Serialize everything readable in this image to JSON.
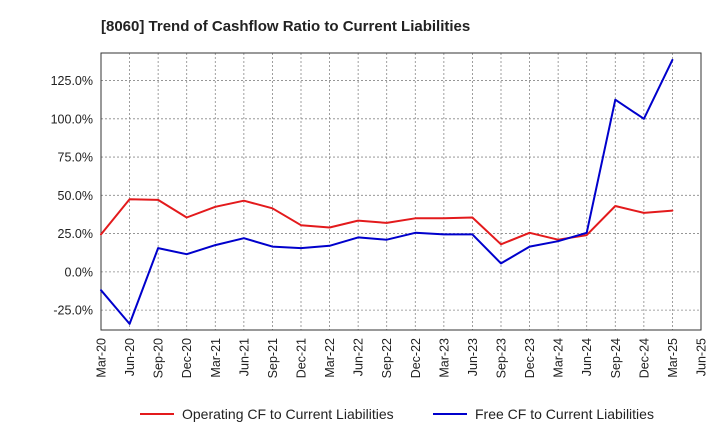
{
  "chart_data": {
    "type": "line",
    "title": "[8060]  Trend of Cashflow Ratio to Current Liabilities",
    "xlabel": "",
    "ylabel": "",
    "categories": [
      "Mar-20",
      "Jun-20",
      "Sep-20",
      "Dec-20",
      "Mar-21",
      "Jun-21",
      "Sep-21",
      "Dec-21",
      "Mar-22",
      "Jun-22",
      "Sep-22",
      "Dec-22",
      "Mar-23",
      "Jun-23",
      "Sep-23",
      "Dec-23",
      "Mar-24",
      "Jun-24",
      "Sep-24",
      "Dec-24",
      "Mar-25",
      "Jun-25"
    ],
    "y_ticks": [
      -25,
      0,
      25,
      50,
      75,
      100,
      125
    ],
    "y_tick_labels": [
      "-25.0%",
      "0.0%",
      "25.0%",
      "50.0%",
      "75.0%",
      "100.0%",
      "125.0%"
    ],
    "ylim": [
      -38,
      143
    ],
    "grid": true,
    "legend_position": "bottom",
    "series": [
      {
        "name": "Operating CF to Current Liabilities",
        "color": "#e31a1c",
        "values": [
          24.5,
          47.5,
          47.0,
          35.5,
          42.5,
          46.5,
          41.5,
          30.5,
          29.0,
          33.5,
          32.0,
          35.0,
          35.0,
          35.5,
          18.0,
          25.5,
          21.0,
          24.0,
          43.0,
          38.5,
          40.0,
          null
        ]
      },
      {
        "name": "Free CF to Current Liabilities",
        "color": "#0000cc",
        "values": [
          -12.0,
          -34.0,
          15.5,
          11.5,
          17.5,
          22.0,
          16.5,
          15.5,
          17.0,
          22.5,
          21.0,
          25.5,
          24.5,
          24.5,
          5.5,
          16.5,
          20.0,
          25.5,
          112.5,
          100.0,
          138.5,
          null
        ]
      }
    ]
  }
}
